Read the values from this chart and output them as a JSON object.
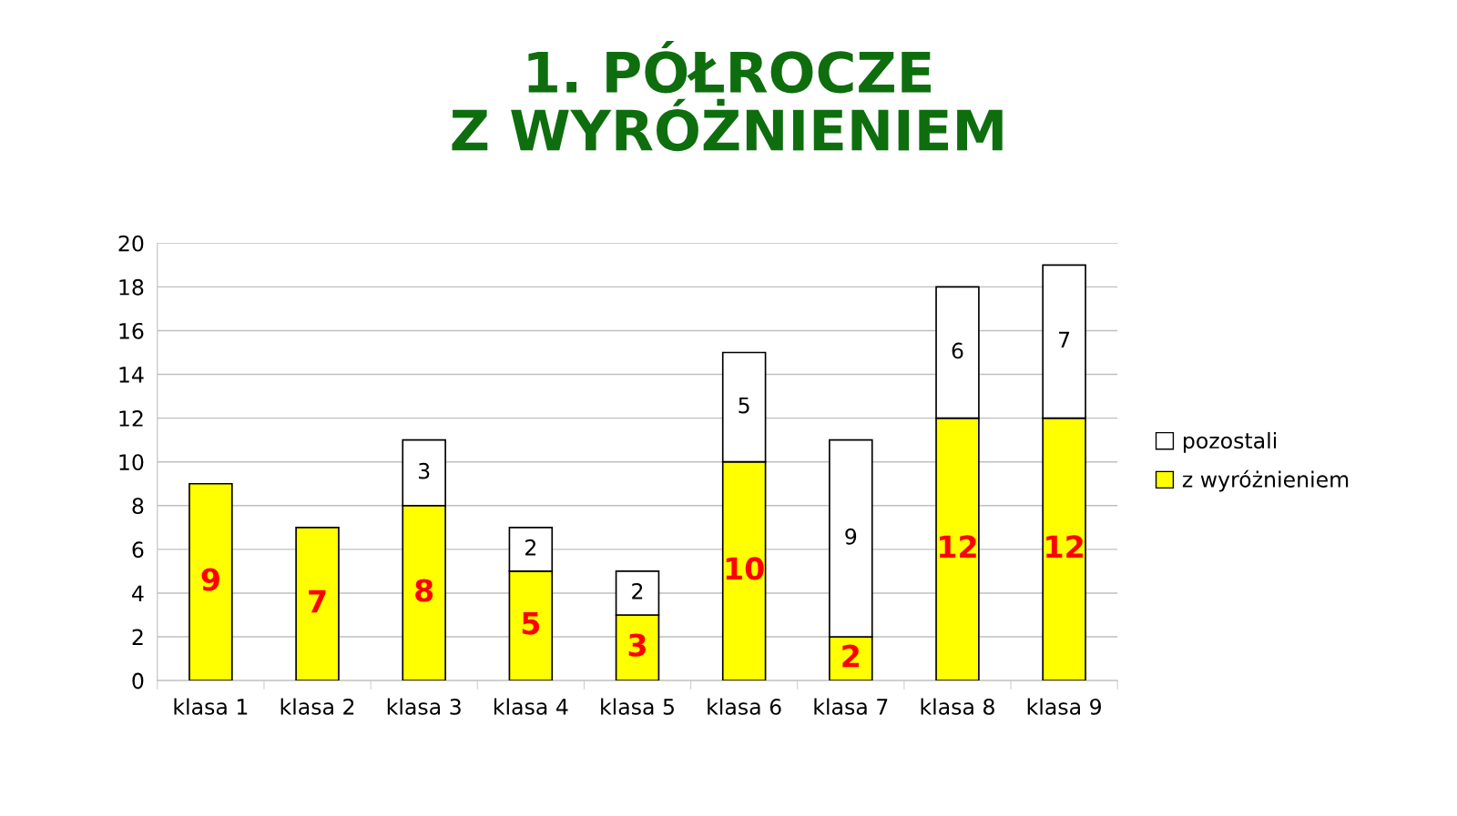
{
  "chart_data": {
    "type": "bar",
    "title": "1. PÓŁROCZE\nZ WYRÓŻNIENIEM",
    "categories": [
      "klasa 1",
      "klasa 2",
      "klasa 3",
      "klasa 4",
      "klasa 5",
      "klasa 6",
      "klasa 7",
      "klasa 8",
      "klasa 9"
    ],
    "series": [
      {
        "name": "z wyróżnieniem",
        "color": "#ffff00",
        "values": [
          9,
          7,
          8,
          5,
          3,
          10,
          2,
          12,
          12
        ]
      },
      {
        "name": "pozostali",
        "color": "#ffffff",
        "values": [
          null,
          null,
          3,
          2,
          2,
          5,
          9,
          6,
          7
        ]
      }
    ],
    "stacked": true,
    "ylim": [
      0,
      20
    ],
    "yticks": [
      0,
      2,
      4,
      6,
      8,
      10,
      12,
      14,
      16,
      18,
      20
    ],
    "grid": "y",
    "legend": "right",
    "data_labels": true
  }
}
